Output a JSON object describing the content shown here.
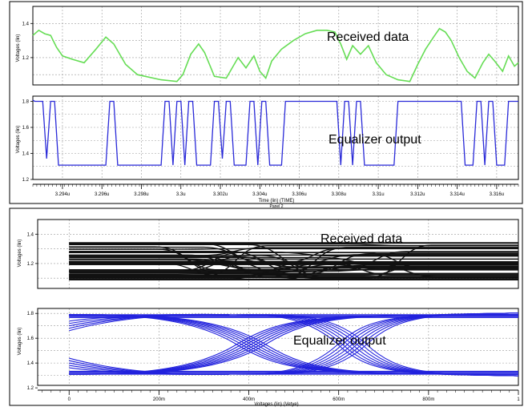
{
  "colors": {
    "received": "#66dd55",
    "equalizer": "#2a2ad8",
    "eye_received": "#111111",
    "eye_equalizer": "#2222dd",
    "grid": "#9a9a9a",
    "frame": "#000000"
  },
  "panel1": {
    "x_axis": {
      "label": "Time (lin) (TIME)",
      "range": [
        3.2925,
        3.3171
      ],
      "ticks": [
        {
          "v": 3.294,
          "label": "3.294u"
        },
        {
          "v": 3.296,
          "label": "3.296u"
        },
        {
          "v": 3.298,
          "label": "3.298u"
        },
        {
          "v": 3.3,
          "label": "3.3u"
        },
        {
          "v": 3.302,
          "label": "3.302u"
        },
        {
          "v": 3.304,
          "label": "3.304u"
        },
        {
          "v": 3.306,
          "label": "3.306u"
        },
        {
          "v": 3.308,
          "label": "3.308u"
        },
        {
          "v": 3.31,
          "label": "3.31u"
        },
        {
          "v": 3.312,
          "label": "3.312u"
        },
        {
          "v": 3.314,
          "label": "3.314u"
        },
        {
          "v": 3.316,
          "label": "3.316u"
        }
      ]
    },
    "panel_label": "Panel 2"
  },
  "chart_data": [
    {
      "type": "line",
      "ylabel": "Voltages (lin)",
      "ylim": [
        1.04,
        1.5
      ],
      "yticks": [
        {
          "v": 1.2,
          "label": "1.2"
        },
        {
          "v": 1.4,
          "label": "1.4"
        }
      ],
      "xlim": [
        3.2925,
        3.3171
      ],
      "annotation": "Received data",
      "series": [
        {
          "points": [
            [
              3.2925,
              1.33
            ],
            [
              3.2928,
              1.36
            ],
            [
              3.2931,
              1.34
            ],
            [
              3.2934,
              1.33
            ],
            [
              3.2937,
              1.26
            ],
            [
              3.294,
              1.21
            ],
            [
              3.2945,
              1.19
            ],
            [
              3.2951,
              1.17
            ],
            [
              3.2957,
              1.25
            ],
            [
              3.2962,
              1.32
            ],
            [
              3.2966,
              1.28
            ],
            [
              3.2972,
              1.16
            ],
            [
              3.2978,
              1.1
            ],
            [
              3.299,
              1.07
            ],
            [
              3.2998,
              1.06
            ],
            [
              3.3001,
              1.1
            ],
            [
              3.3005,
              1.22
            ],
            [
              3.3009,
              1.28
            ],
            [
              3.3012,
              1.23
            ],
            [
              3.3017,
              1.09
            ],
            [
              3.3023,
              1.08
            ],
            [
              3.3029,
              1.2
            ],
            [
              3.3033,
              1.14
            ],
            [
              3.3037,
              1.21
            ],
            [
              3.304,
              1.12
            ],
            [
              3.3043,
              1.08
            ],
            [
              3.3046,
              1.18
            ],
            [
              3.3051,
              1.25
            ],
            [
              3.3057,
              1.3
            ],
            [
              3.3063,
              1.34
            ],
            [
              3.3069,
              1.36
            ],
            [
              3.3074,
              1.36
            ],
            [
              3.3078,
              1.35
            ],
            [
              3.3081,
              1.28
            ],
            [
              3.3084,
              1.19
            ],
            [
              3.3087,
              1.27
            ],
            [
              3.3091,
              1.22
            ],
            [
              3.3095,
              1.27
            ],
            [
              3.3099,
              1.17
            ],
            [
              3.3104,
              1.1
            ],
            [
              3.311,
              1.07
            ],
            [
              3.3116,
              1.06
            ],
            [
              3.312,
              1.16
            ],
            [
              3.3124,
              1.25
            ],
            [
              3.3128,
              1.32
            ],
            [
              3.3131,
              1.37
            ],
            [
              3.3134,
              1.35
            ],
            [
              3.3137,
              1.3
            ],
            [
              3.3141,
              1.2
            ],
            [
              3.3145,
              1.12
            ],
            [
              3.3149,
              1.08
            ],
            [
              3.3153,
              1.17
            ],
            [
              3.3156,
              1.22
            ],
            [
              3.3159,
              1.18
            ],
            [
              3.3163,
              1.12
            ],
            [
              3.3166,
              1.21
            ],
            [
              3.3169,
              1.15
            ],
            [
              3.3171,
              1.17
            ]
          ]
        }
      ]
    },
    {
      "type": "line",
      "ylabel": "Voltages (lin)",
      "ylim": [
        1.2,
        1.84
      ],
      "yticks": [
        {
          "v": 1.2,
          "label": "1.2"
        },
        {
          "v": 1.4,
          "label": "1.4"
        },
        {
          "v": 1.6,
          "label": "1.6"
        },
        {
          "v": 1.8,
          "label": "1.8"
        }
      ],
      "xlim": [
        3.2925,
        3.3171
      ],
      "annotation": "Equalizer output",
      "series": [
        {
          "points": [
            [
              3.2925,
              1.81
            ],
            [
              3.2926,
              1.8
            ],
            [
              3.2928,
              1.8
            ],
            [
              3.293,
              1.8
            ],
            [
              3.2932,
              1.36
            ],
            [
              3.2934,
              1.8
            ],
            [
              3.2936,
              1.8
            ],
            [
              3.2938,
              1.31
            ],
            [
              3.2962,
              1.31
            ],
            [
              3.2964,
              1.8
            ],
            [
              3.2966,
              1.8
            ],
            [
              3.2968,
              1.31
            ],
            [
              3.299,
              1.31
            ],
            [
              3.2992,
              1.8
            ],
            [
              3.2994,
              1.8
            ],
            [
              3.2996,
              1.31
            ],
            [
              3.2998,
              1.8
            ],
            [
              3.3,
              1.8
            ],
            [
              3.3002,
              1.31
            ],
            [
              3.3004,
              1.8
            ],
            [
              3.3006,
              1.8
            ],
            [
              3.3008,
              1.31
            ],
            [
              3.3015,
              1.31
            ],
            [
              3.3017,
              1.8
            ],
            [
              3.3019,
              1.8
            ],
            [
              3.3021,
              1.36
            ],
            [
              3.3023,
              1.8
            ],
            [
              3.3025,
              1.8
            ],
            [
              3.3027,
              1.31
            ],
            [
              3.3033,
              1.31
            ],
            [
              3.3035,
              1.8
            ],
            [
              3.3037,
              1.8
            ],
            [
              3.3039,
              1.31
            ],
            [
              3.3041,
              1.8
            ],
            [
              3.3043,
              1.8
            ],
            [
              3.3045,
              1.31
            ],
            [
              3.3051,
              1.31
            ],
            [
              3.3053,
              1.8
            ],
            [
              3.3079,
              1.8
            ],
            [
              3.3081,
              1.31
            ],
            [
              3.3083,
              1.8
            ],
            [
              3.3085,
              1.8
            ],
            [
              3.3087,
              1.31
            ],
            [
              3.3089,
              1.8
            ],
            [
              3.3091,
              1.8
            ],
            [
              3.3093,
              1.31
            ],
            [
              3.3108,
              1.31
            ],
            [
              3.311,
              1.8
            ],
            [
              3.3142,
              1.8
            ],
            [
              3.3144,
              1.31
            ],
            [
              3.3148,
              1.31
            ],
            [
              3.315,
              1.8
            ],
            [
              3.3152,
              1.8
            ],
            [
              3.3154,
              1.31
            ],
            [
              3.3156,
              1.8
            ],
            [
              3.3158,
              1.8
            ],
            [
              3.316,
              1.31
            ],
            [
              3.3164,
              1.31
            ],
            [
              3.3166,
              1.8
            ],
            [
              3.3168,
              1.8
            ],
            [
              3.3171,
              1.8
            ]
          ]
        }
      ]
    },
    {
      "type": "line",
      "subtype": "eye-diagram",
      "ylabel": "Voltages (lin)",
      "ylim": [
        1.03,
        1.5
      ],
      "yticks": [
        {
          "v": 1.2,
          "label": "1.2"
        },
        {
          "v": 1.4,
          "label": "1.4"
        }
      ],
      "xlim": [
        -0.07,
        1.0
      ],
      "annotation": "Received data",
      "band": [
        1.09,
        1.34
      ]
    },
    {
      "type": "line",
      "subtype": "eye-diagram",
      "ylabel": "Voltages (lin)",
      "xlabel": "Voltages (lin) (Vetye)",
      "ylim": [
        1.22,
        1.84
      ],
      "yticks": [
        {
          "v": 1.2,
          "label": "1.2"
        },
        {
          "v": 1.4,
          "label": "1.4"
        },
        {
          "v": 1.6,
          "label": "1.6"
        },
        {
          "v": 1.8,
          "label": "1.8"
        }
      ],
      "xlim": [
        -0.07,
        1.0
      ],
      "xticks": [
        {
          "v": 0,
          "label": "0"
        },
        {
          "v": 0.2,
          "label": "200m"
        },
        {
          "v": 0.4,
          "label": "400m"
        },
        {
          "v": 0.6,
          "label": "600m"
        },
        {
          "v": 0.8,
          "label": "800m"
        },
        {
          "v": 1.0,
          "label": "1"
        }
      ],
      "annotation": "Equalizer output",
      "levels": [
        1.31,
        1.79
      ],
      "crossings": [
        0.405,
        0.63
      ]
    }
  ]
}
